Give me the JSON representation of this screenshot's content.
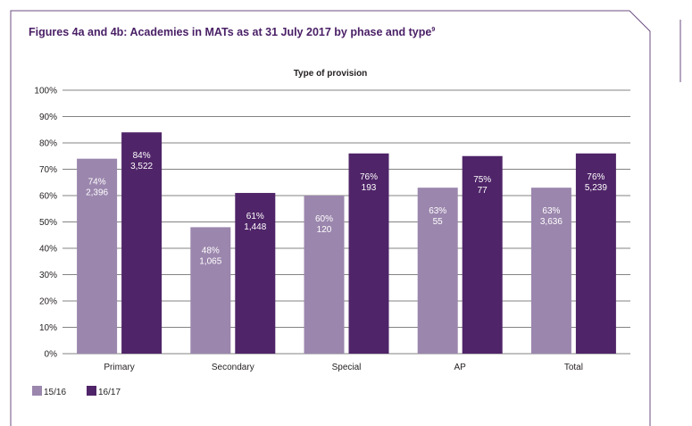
{
  "figure": {
    "title": "Figures 4a and 4b: Academies in MATs as at 31 July 2017 by phase and type",
    "footnote_marker": "9"
  },
  "colors": {
    "series_1": "#9b86ad",
    "series_2": "#4f2468",
    "title": "#4a2066",
    "frame": "#6b4d82",
    "grid": "#5a5a5a"
  },
  "chart_data": {
    "type": "bar",
    "title": "Type of provision",
    "xlabel": "",
    "ylabel": "",
    "categories": [
      "Primary",
      "Secondary",
      "Special",
      "AP",
      "Total"
    ],
    "series": [
      {
        "name": "15/16",
        "values": [
          74,
          48,
          60,
          63,
          63
        ],
        "counts": [
          "2,396",
          "1,065",
          "120",
          "55",
          "3,636"
        ]
      },
      {
        "name": "16/17",
        "values": [
          84,
          61,
          76,
          75,
          76
        ],
        "counts": [
          "3,522",
          "1,448",
          "193",
          "77",
          "5,239"
        ]
      }
    ],
    "yticks": [
      "0%",
      "10%",
      "20%",
      "30%",
      "40%",
      "50%",
      "60%",
      "70%",
      "80%",
      "90%",
      "100%"
    ],
    "ylim": [
      0,
      100
    ],
    "grid": true,
    "legend_position": "bottom-left"
  }
}
